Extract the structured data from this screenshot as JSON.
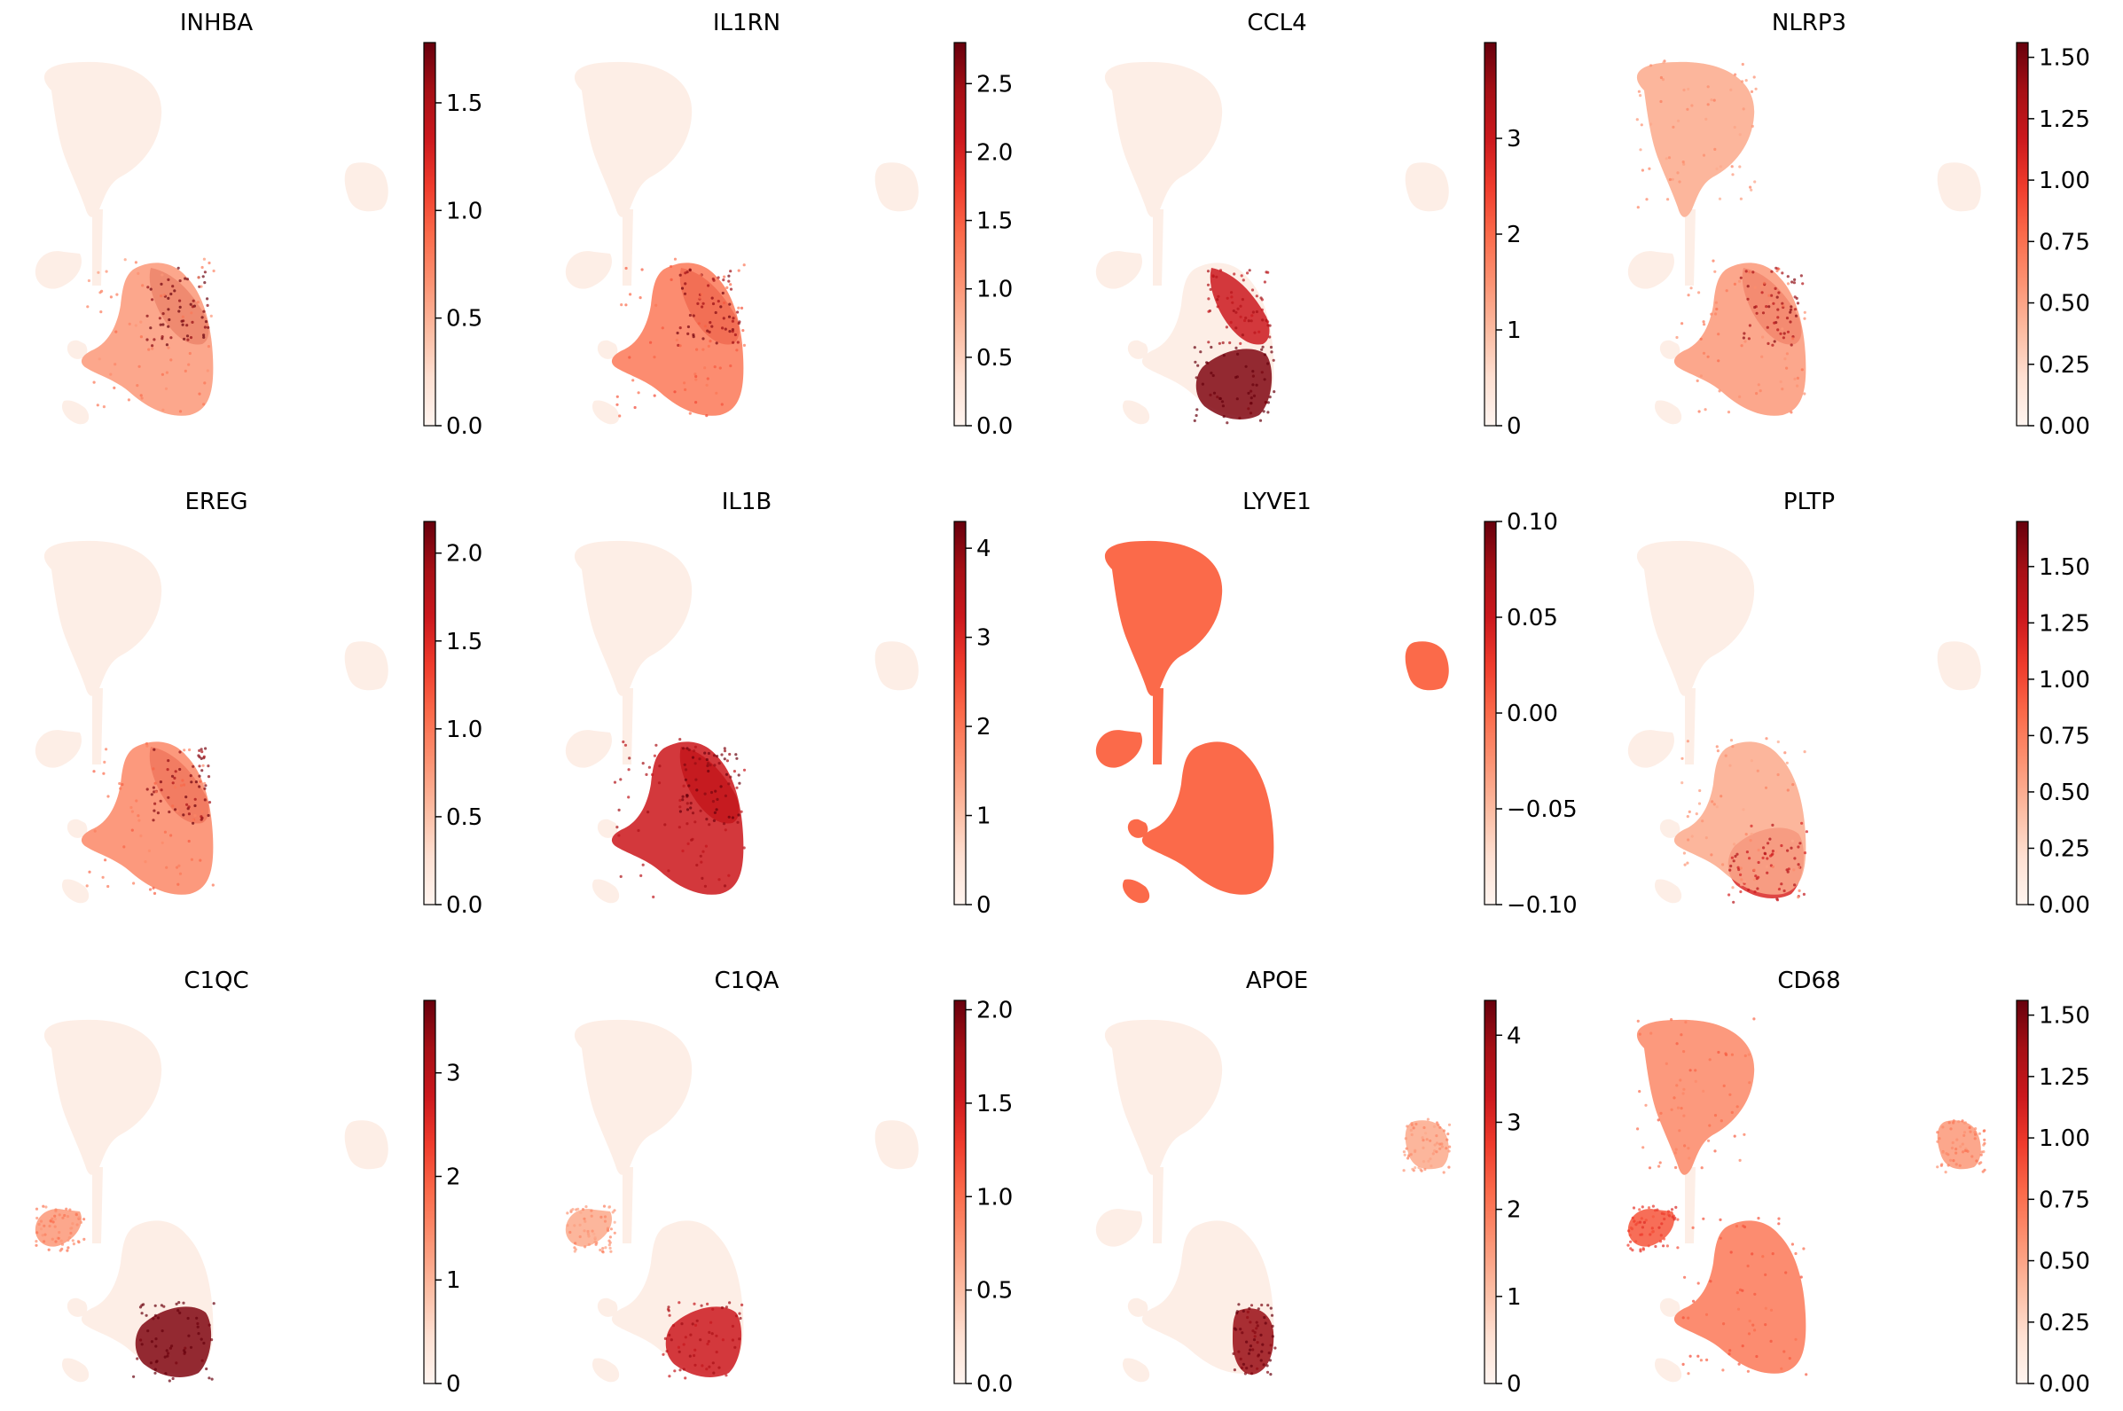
{
  "figure": {
    "colormap": "Reds",
    "colormap_stops": [
      "#fff5f0",
      "#fee0d2",
      "#fcbba1",
      "#fc9272",
      "#fb6a4a",
      "#ef3b2c",
      "#cb181d",
      "#a50f15",
      "#67000d"
    ],
    "cluster_base_color": "#fdeee6"
  },
  "chart_data": [
    {
      "type": "scatter",
      "title": "INHBA",
      "xlabel": "",
      "ylabel": "",
      "colorbar": {
        "min": 0.0,
        "max": 1.78,
        "ticks": [
          0.0,
          0.5,
          1.0,
          1.5
        ],
        "tick_labels": [
          "0.0",
          "0.5",
          "1.0",
          "1.5"
        ]
      },
      "hotspots": [
        {
          "region": "lower-right-upper",
          "level": 0.9
        },
        {
          "region": "lower-right",
          "level": 0.35
        }
      ]
    },
    {
      "type": "scatter",
      "title": "IL1RN",
      "xlabel": "",
      "ylabel": "",
      "colorbar": {
        "min": 0.0,
        "max": 2.8,
        "ticks": [
          0.0,
          0.5,
          1.0,
          1.5,
          2.0,
          2.5
        ],
        "tick_labels": [
          "0.0",
          "0.5",
          "1.0",
          "1.5",
          "2.0",
          "2.5"
        ]
      },
      "hotspots": [
        {
          "region": "lower-right-upper",
          "level": 0.85
        },
        {
          "region": "lower-right",
          "level": 0.45
        }
      ]
    },
    {
      "type": "scatter",
      "title": "CCL4",
      "xlabel": "",
      "ylabel": "",
      "colorbar": {
        "min": 0,
        "max": 4.0,
        "ticks": [
          0,
          1,
          2,
          3
        ],
        "tick_labels": [
          "0",
          "1",
          "2",
          "3"
        ]
      },
      "hotspots": [
        {
          "region": "lower-right-upper",
          "level": 0.75
        },
        {
          "region": "lower-right-bottom",
          "level": 0.95
        }
      ]
    },
    {
      "type": "scatter",
      "title": "NLRP3",
      "xlabel": "",
      "ylabel": "",
      "colorbar": {
        "min": 0.0,
        "max": 1.56,
        "ticks": [
          0.0,
          0.25,
          0.5,
          0.75,
          1.0,
          1.25,
          1.5
        ],
        "tick_labels": [
          "0.00",
          "0.25",
          "0.50",
          "0.75",
          "1.00",
          "1.25",
          "1.50"
        ]
      },
      "hotspots": [
        {
          "region": "lower-right-upper",
          "level": 0.8
        },
        {
          "region": "top",
          "level": 0.3
        },
        {
          "region": "lower-right",
          "level": 0.35
        }
      ]
    },
    {
      "type": "scatter",
      "title": "EREG",
      "xlabel": "",
      "ylabel": "",
      "colorbar": {
        "min": 0.0,
        "max": 2.18,
        "ticks": [
          0.0,
          0.5,
          1.0,
          1.5,
          2.0
        ],
        "tick_labels": [
          "0.0",
          "0.5",
          "1.0",
          "1.5",
          "2.0"
        ]
      },
      "hotspots": [
        {
          "region": "lower-right-upper",
          "level": 0.85
        },
        {
          "region": "lower-right",
          "level": 0.4
        }
      ]
    },
    {
      "type": "scatter",
      "title": "IL1B",
      "xlabel": "",
      "ylabel": "",
      "colorbar": {
        "min": 0,
        "max": 4.3,
        "ticks": [
          0,
          1,
          2,
          3,
          4
        ],
        "tick_labels": [
          "0",
          "1",
          "2",
          "3",
          "4"
        ]
      },
      "hotspots": [
        {
          "region": "lower-right-upper",
          "level": 0.9
        },
        {
          "region": "lower-right",
          "level": 0.75
        }
      ]
    },
    {
      "type": "scatter",
      "title": "LYVE1",
      "xlabel": "",
      "ylabel": "",
      "colorbar": {
        "min": -0.1,
        "max": 0.1,
        "ticks": [
          -0.1,
          -0.05,
          0.0,
          0.05,
          0.1
        ],
        "tick_labels": [
          "−0.10",
          "−0.05",
          "0.00",
          "0.05",
          "0.10"
        ]
      },
      "uniform_level": 0.5
    },
    {
      "type": "scatter",
      "title": "PLTP",
      "xlabel": "",
      "ylabel": "",
      "colorbar": {
        "min": 0.0,
        "max": 1.7,
        "ticks": [
          0.0,
          0.25,
          0.5,
          0.75,
          1.0,
          1.25,
          1.5
        ],
        "tick_labels": [
          "0.00",
          "0.25",
          "0.50",
          "0.75",
          "1.00",
          "1.25",
          "1.50"
        ]
      },
      "hotspots": [
        {
          "region": "lower-right-bottom",
          "level": 0.7
        },
        {
          "region": "lower-right",
          "level": 0.3
        }
      ]
    },
    {
      "type": "scatter",
      "title": "C1QC",
      "xlabel": "",
      "ylabel": "",
      "colorbar": {
        "min": 0,
        "max": 3.7,
        "ticks": [
          0,
          1,
          2,
          3
        ],
        "tick_labels": [
          "0",
          "1",
          "2",
          "3"
        ]
      },
      "hotspots": [
        {
          "region": "lower-right-bottom",
          "level": 0.95
        },
        {
          "region": "left-lobe",
          "level": 0.35
        }
      ]
    },
    {
      "type": "scatter",
      "title": "C1QA",
      "xlabel": "",
      "ylabel": "",
      "colorbar": {
        "min": 0.0,
        "max": 2.05,
        "ticks": [
          0.0,
          0.5,
          1.0,
          1.5,
          2.0
        ],
        "tick_labels": [
          "0.0",
          "0.5",
          "1.0",
          "1.5",
          "2.0"
        ]
      },
      "hotspots": [
        {
          "region": "lower-right-bottom",
          "level": 0.75
        },
        {
          "region": "left-lobe",
          "level": 0.3
        }
      ]
    },
    {
      "type": "scatter",
      "title": "APOE",
      "xlabel": "",
      "ylabel": "",
      "colorbar": {
        "min": 0,
        "max": 4.4,
        "ticks": [
          0,
          1,
          2,
          3,
          4
        ],
        "tick_labels": [
          "0",
          "1",
          "2",
          "3",
          "4"
        ]
      },
      "hotspots": [
        {
          "region": "lower-right-bottom-right",
          "level": 0.9
        },
        {
          "region": "island",
          "level": 0.3
        }
      ]
    },
    {
      "type": "scatter",
      "title": "CD68",
      "xlabel": "",
      "ylabel": "",
      "colorbar": {
        "min": 0.0,
        "max": 1.56,
        "ticks": [
          0.0,
          0.25,
          0.5,
          0.75,
          1.0,
          1.25,
          1.5
        ],
        "tick_labels": [
          "0.00",
          "0.25",
          "0.50",
          "0.75",
          "1.00",
          "1.25",
          "1.50"
        ]
      },
      "hotspots": [
        {
          "region": "top",
          "level": 0.4
        },
        {
          "region": "left-lobe",
          "level": 0.55
        },
        {
          "region": "lower-right",
          "level": 0.45
        },
        {
          "region": "island",
          "level": 0.35
        }
      ]
    }
  ]
}
